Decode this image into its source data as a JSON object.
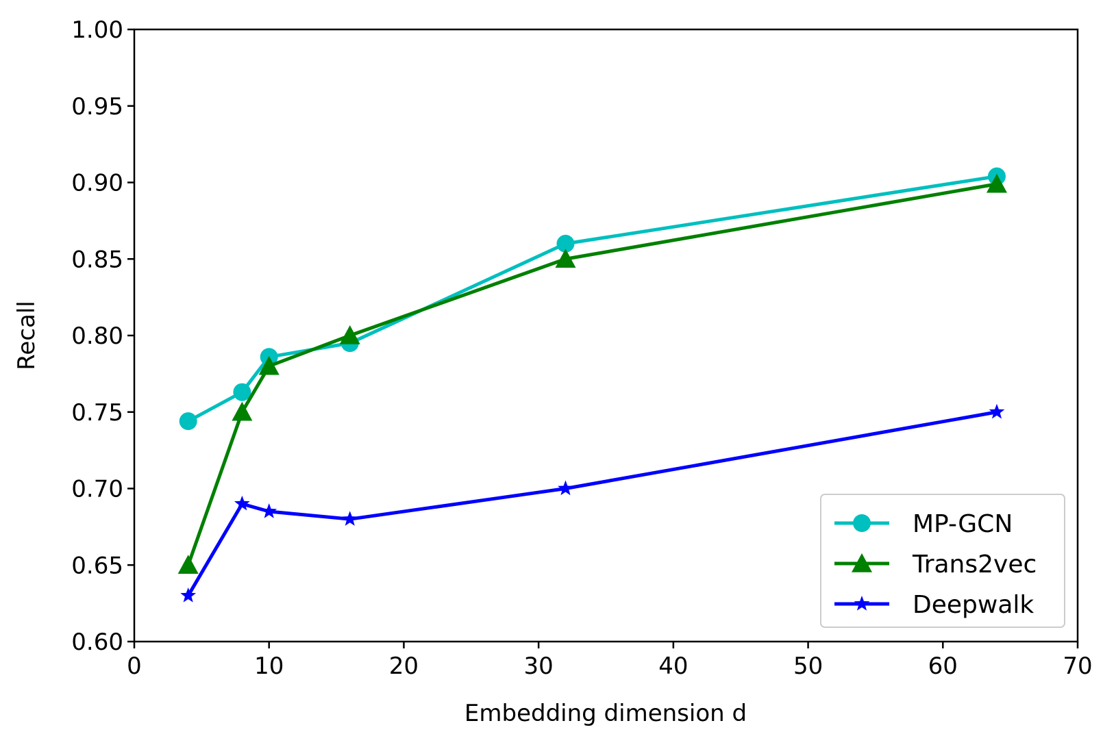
{
  "chart_data": {
    "type": "line",
    "title": "",
    "xlabel": "Embedding dimension d",
    "ylabel": "Recall",
    "xlim": [
      0,
      70
    ],
    "ylim": [
      0.6,
      1.0
    ],
    "xticks": [
      0,
      10,
      20,
      30,
      40,
      50,
      60,
      70
    ],
    "xtick_labels": [
      "0",
      "10",
      "20",
      "30",
      "40",
      "50",
      "60",
      "70"
    ],
    "yticks": [
      0.6,
      0.65,
      0.7,
      0.75,
      0.8,
      0.85,
      0.9,
      0.95,
      1.0
    ],
    "ytick_labels": [
      "0.60",
      "0.65",
      "0.70",
      "0.75",
      "0.80",
      "0.85",
      "0.90",
      "0.95",
      "1.00"
    ],
    "grid": false,
    "legend_position": "lower-right",
    "x": [
      4,
      8,
      10,
      16,
      32,
      64
    ],
    "series": [
      {
        "name": "MP-GCN",
        "color": "#00bfbf",
        "marker": "circle",
        "values": [
          0.744,
          0.763,
          0.786,
          0.795,
          0.86,
          0.904
        ]
      },
      {
        "name": "Trans2vec",
        "color": "#008000",
        "marker": "triangle",
        "values": [
          0.65,
          0.75,
          0.78,
          0.8,
          0.85,
          0.899
        ]
      },
      {
        "name": "Deepwalk",
        "color": "#0000ff",
        "marker": "star",
        "values": [
          0.63,
          0.69,
          0.685,
          0.68,
          0.7,
          0.75
        ]
      }
    ]
  }
}
